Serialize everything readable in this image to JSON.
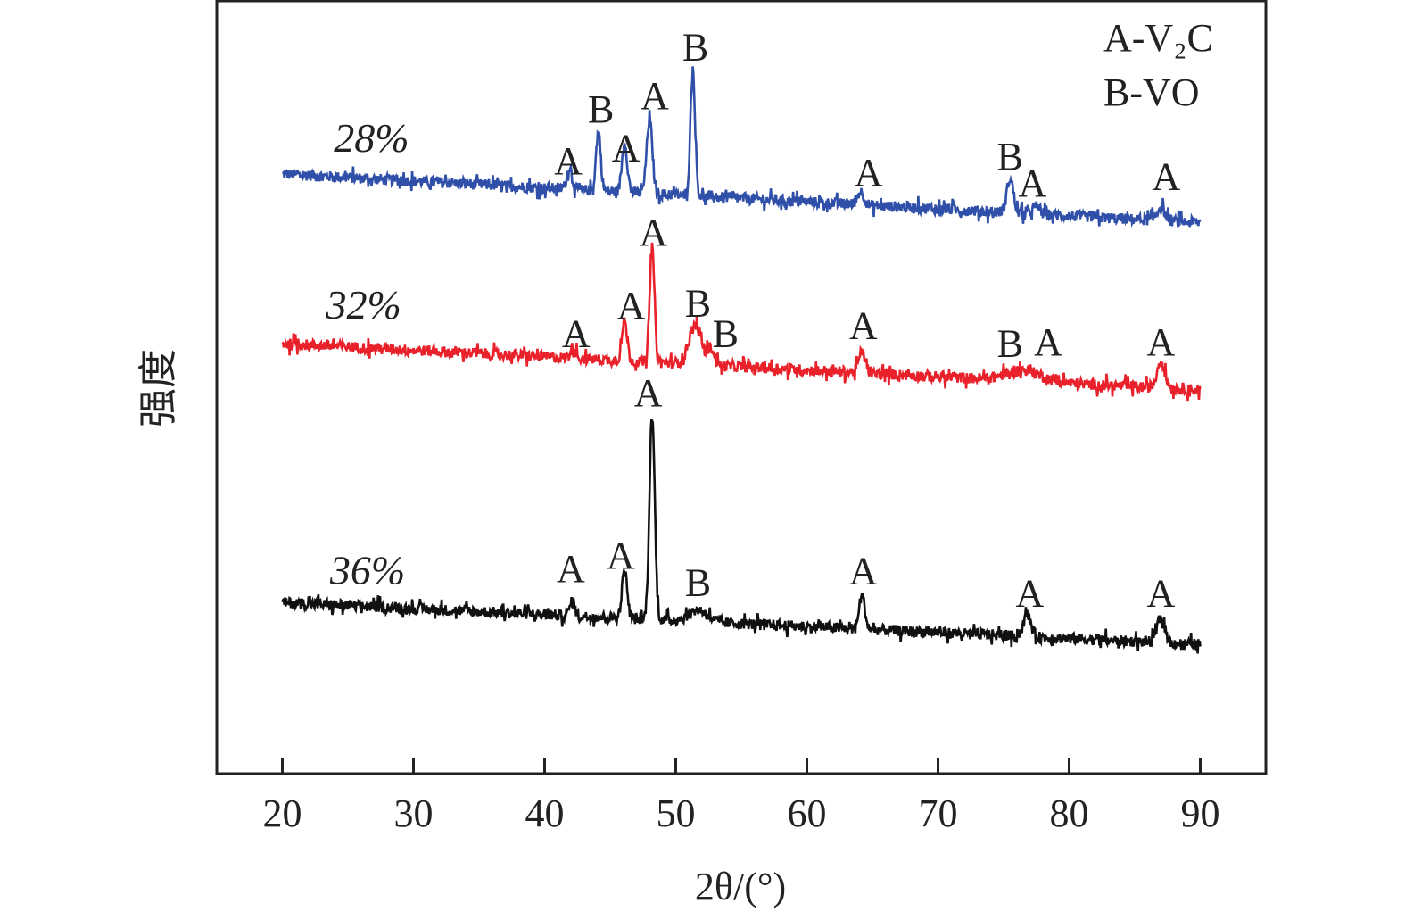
{
  "chart_data": {
    "type": "line",
    "xlabel": "2θ/(°)",
    "ylabel": "强度",
    "xlim": [
      15,
      95
    ],
    "ylim": [
      0,
      100
    ],
    "xticks": [
      20,
      30,
      40,
      50,
      60,
      70,
      80,
      90
    ],
    "xtick_labels": [
      "20",
      "30",
      "40",
      "50",
      "60",
      "70",
      "80",
      "90"
    ],
    "yticks_shown": false,
    "grid": false,
    "legend": {
      "placement": "top-right",
      "entries": [
        "A-V₂C",
        "B-VO"
      ]
    },
    "x_range": [
      20,
      90
    ],
    "series": [
      {
        "name": "28%",
        "color": "#2f4fa8",
        "baseline": [
          77.5,
          71.2
        ],
        "noise": 1.4,
        "peaks": [
          {
            "x": 41.9,
            "height": 2.9,
            "width": 0.2
          },
          {
            "x": 44.1,
            "height": 7.6,
            "width": 0.18
          },
          {
            "x": 46.1,
            "height": 6.5,
            "width": 0.2
          },
          {
            "x": 48.0,
            "height": 9.5,
            "width": 0.22
          },
          {
            "x": 51.3,
            "height": 16.3,
            "width": 0.18
          },
          {
            "x": 64.1,
            "height": 1.7,
            "width": 0.25
          },
          {
            "x": 75.5,
            "height": 4.4,
            "width": 0.25
          },
          {
            "x": 77.5,
            "height": 1.0,
            "width": 0.3
          },
          {
            "x": 87.0,
            "height": 1.7,
            "width": 0.3
          }
        ],
        "annotations": [
          {
            "text": "28%",
            "x": 26.8,
            "y": 80.4
          },
          {
            "text": "A",
            "x": 41.8,
            "y": 77.5
          },
          {
            "text": "B",
            "x": 44.3,
            "y": 84.2
          },
          {
            "text": "A",
            "x": 46.2,
            "y": 79.2
          },
          {
            "text": "A",
            "x": 48.4,
            "y": 85.9
          },
          {
            "text": "B",
            "x": 51.5,
            "y": 92.2
          },
          {
            "text": "A",
            "x": 64.7,
            "y": 76.0
          },
          {
            "text": "B",
            "x": 75.5,
            "y": 78.1
          },
          {
            "text": "A",
            "x": 77.2,
            "y": 74.6
          },
          {
            "text": "A",
            "x": 87.4,
            "y": 75.5
          }
        ]
      },
      {
        "name": "32%",
        "color": "#e8212a",
        "baseline": [
          55.6,
          49.6
        ],
        "noise": 1.4,
        "peaks": [
          {
            "x": 42.2,
            "height": 1.5,
            "width": 0.2
          },
          {
            "x": 46.1,
            "height": 5.1,
            "width": 0.2
          },
          {
            "x": 48.2,
            "height": 14.8,
            "width": 0.18
          },
          {
            "x": 51.5,
            "height": 5.0,
            "width": 0.5
          },
          {
            "x": 52.7,
            "height": 2.0,
            "width": 0.25
          },
          {
            "x": 64.2,
            "height": 2.7,
            "width": 0.25
          },
          {
            "x": 76.5,
            "height": 1.4,
            "width": 1.3
          },
          {
            "x": 87.0,
            "height": 3.5,
            "width": 0.3
          }
        ],
        "annotations": [
          {
            "text": "32%",
            "x": 26.2,
            "y": 58.8
          },
          {
            "text": "A",
            "x": 42.4,
            "y": 55.2
          },
          {
            "text": "A",
            "x": 46.6,
            "y": 58.8
          },
          {
            "text": "A",
            "x": 48.3,
            "y": 68.3
          },
          {
            "text": "B",
            "x": 51.7,
            "y": 59.1
          },
          {
            "text": "B",
            "x": 53.8,
            "y": 55.2
          },
          {
            "text": "A",
            "x": 64.3,
            "y": 56.2
          },
          {
            "text": "B",
            "x": 75.5,
            "y": 53.9
          },
          {
            "text": "A",
            "x": 78.4,
            "y": 54.1
          },
          {
            "text": "A",
            "x": 87.0,
            "y": 54.1
          }
        ]
      },
      {
        "name": "36%",
        "color": "#111111",
        "baseline": [
          22.1,
          16.7
        ],
        "noise": 1.4,
        "peaks": [
          {
            "x": 42.1,
            "height": 1.8,
            "width": 0.2
          },
          {
            "x": 46.1,
            "height": 6.2,
            "width": 0.2
          },
          {
            "x": 48.2,
            "height": 26.4,
            "width": 0.2
          },
          {
            "x": 51.7,
            "height": 1.5,
            "width": 0.7
          },
          {
            "x": 64.2,
            "height": 4.3,
            "width": 0.22
          },
          {
            "x": 76.8,
            "height": 2.7,
            "width": 0.3
          },
          {
            "x": 87.0,
            "height": 3.2,
            "width": 0.3
          }
        ],
        "annotations": [
          {
            "text": "36%",
            "x": 26.5,
            "y": 24.5
          },
          {
            "text": "A",
            "x": 42.0,
            "y": 24.8
          },
          {
            "text": "A",
            "x": 45.8,
            "y": 26.5
          },
          {
            "text": "A",
            "x": 47.9,
            "y": 47.5
          },
          {
            "text": "B",
            "x": 51.7,
            "y": 23.0
          },
          {
            "text": "A",
            "x": 64.3,
            "y": 24.5
          },
          {
            "text": "A",
            "x": 77.0,
            "y": 21.6
          },
          {
            "text": "A",
            "x": 87.0,
            "y": 21.6
          }
        ]
      }
    ]
  }
}
